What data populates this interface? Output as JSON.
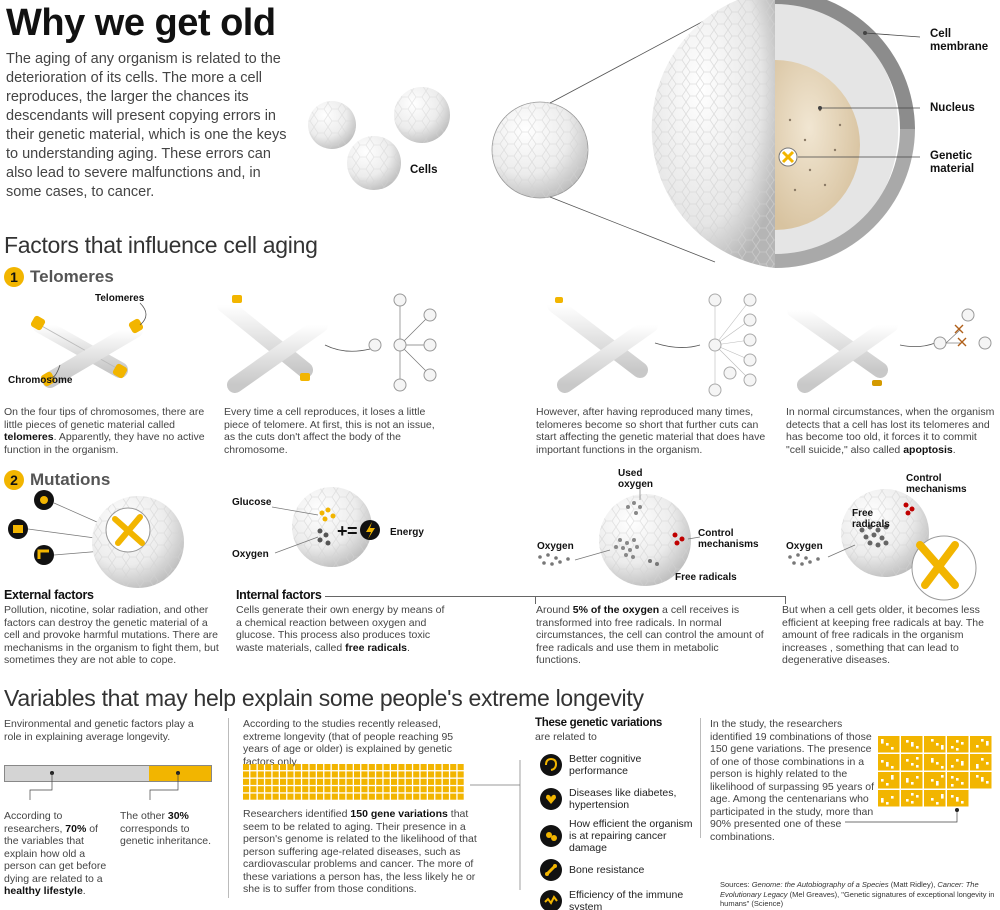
{
  "header": {
    "title": "Why we get old",
    "intro": "The aging of any organism is related to the deterioration of its cells. The more a cell reproduces, the larger the chances its descendants will present copying errors in their genetic material, which is one the keys to understanding aging. These errors can also lead to severe malfunctions and, in some cases, to cancer.",
    "cells_label": "Cells",
    "membrane_label": "Cell membrane",
    "nucleus_label": "Nucleus",
    "genetic_label": "Genetic material"
  },
  "factors": {
    "title": "Factors that influence cell aging",
    "telomeres": {
      "num": "1",
      "title": "Telomeres",
      "telomeres_label": "Telomeres",
      "chromosome_label": "Chromosome",
      "p1_a": "On the four tips of chromosomes, there are little pieces of genetic material called ",
      "p1_b": "telomeres",
      "p1_c": ". Apparently, they have no active function in the organism.",
      "p2": "Every time a cell reproduces, it loses a little piece of telomere. At first, this is not an issue, as the cuts don't affect the body of the chromosome.",
      "p3": "However, after having reproduced many times, telomeres become so short that further cuts can start affecting the genetic material that does have important functions in the organism.",
      "p4_a": "In normal circumstances, when the organism detects that a cell has lost its telomeres and has become too old, it forces it to commit \"cell suicide,\" also called ",
      "p4_b": "apoptosis",
      "p4_c": "."
    },
    "mutations": {
      "num": "2",
      "title": "Mutations",
      "glucose": "Glucose",
      "oxygen": "Oxygen",
      "energy": "Energy",
      "used_oxygen": "Used oxygen",
      "oxygen2": "Oxygen",
      "control1": "Control mechanisms",
      "free_radicals1": "Free radicals",
      "oxygen3": "Oxygen",
      "control2": "Control mechanisms",
      "free_radicals2": "Free radicals",
      "external_title": "External factors",
      "external_text": "Pollution, nicotine, solar radiation, and other factors can destroy the genetic material of a cell and provoke harmful mutations. There are mechanisms in the organism to fight them, but sometimes they are not able to cope.",
      "internal_title": "Internal factors",
      "internal_a": "Cells generate their own energy by means of a chemical reaction between oxygen and glucose. This process also produces toxic waste materials, called ",
      "internal_b": "free radicals",
      "internal_c": ".",
      "around_a": "Around ",
      "around_b": "5% of the oxygen",
      "around_c": " a cell receives is transformed into free radicals. In normal circumstances, the cell can control the amount of free radicals and use them in metabolic functions.",
      "older": "But when a cell gets older, it becomes less efficient at keeping free radicals at bay. The amount of free radicals in the organism increases , something that can lead to degenerative diseases."
    }
  },
  "longevity": {
    "title": "Variables that may help explain some people's extreme longevity",
    "env_text": "Environmental and genetic factors play a role in explaining average longevity.",
    "bar_share_lifestyle": 0.7,
    "bar_share_genetic": 0.3,
    "bar_colors": {
      "lifestyle": "#d4d4d4",
      "genetic": "#f2b500"
    },
    "p70_a": "According to researchers, ",
    "p70_b": "70%",
    "p70_c": " of the variables that explain how old a person can get before dying are related to a ",
    "p70_d": "healthy lifestyle",
    "p70_e": ".",
    "p30_a": "The other ",
    "p30_b": "30%",
    "p30_c": " corresponds to genetic inheritance.",
    "studies_text": "According to the studies recently released, extreme longevity (that of people reaching 95 years of age or older) is explained by genetic factors only.",
    "gene_count": 150,
    "gene_a": "Researchers identified ",
    "gene_b": "150 gene variations",
    "gene_c": " that seem to be related to aging. Their presence in a person's genome is related to the likelihood of that person suffering age-related diseases, such as cardiovascular problems and cancer. The more of these variations a person has, the less likely he or she is to suffer from those conditions.",
    "variations_title": "These genetic variations",
    "variations_sub": "are related to",
    "variations": [
      {
        "icon": "brain-icon",
        "label": "Better cognitive performance"
      },
      {
        "icon": "heart-icon",
        "label": "Diseases like diabetes, hypertension"
      },
      {
        "icon": "cell-repair-icon",
        "label": "How efficient the organism is at repairing cancer damage"
      },
      {
        "icon": "bone-icon",
        "label": "Bone resistance"
      },
      {
        "icon": "immune-icon",
        "label": "Efficiency of the immune system"
      }
    ],
    "combo_count": 19,
    "study_text": "In the study, the researchers identified 19 combinations of those 150 gene variations. The presence of one of those combinations in a person is highly related to the likelihood of surpassing 95 years of age. Among the centenarians who participated in the study, more than 90% presented one of these combinations.",
    "sources_label": "Sources:",
    "sources_a": "Genome: the Autobiography of a Species",
    "sources_b": " (Matt Ridley), ",
    "sources_c": "Cancer: The Evolutionary Legacy",
    "sources_d": " (Mel Greaves), \"Genetic signatures of exceptional longevity in humans\" (Science)"
  },
  "colors": {
    "accent": "#f2b500",
    "dark": "#111111",
    "muted": "#444444",
    "radical": "#c00000"
  }
}
